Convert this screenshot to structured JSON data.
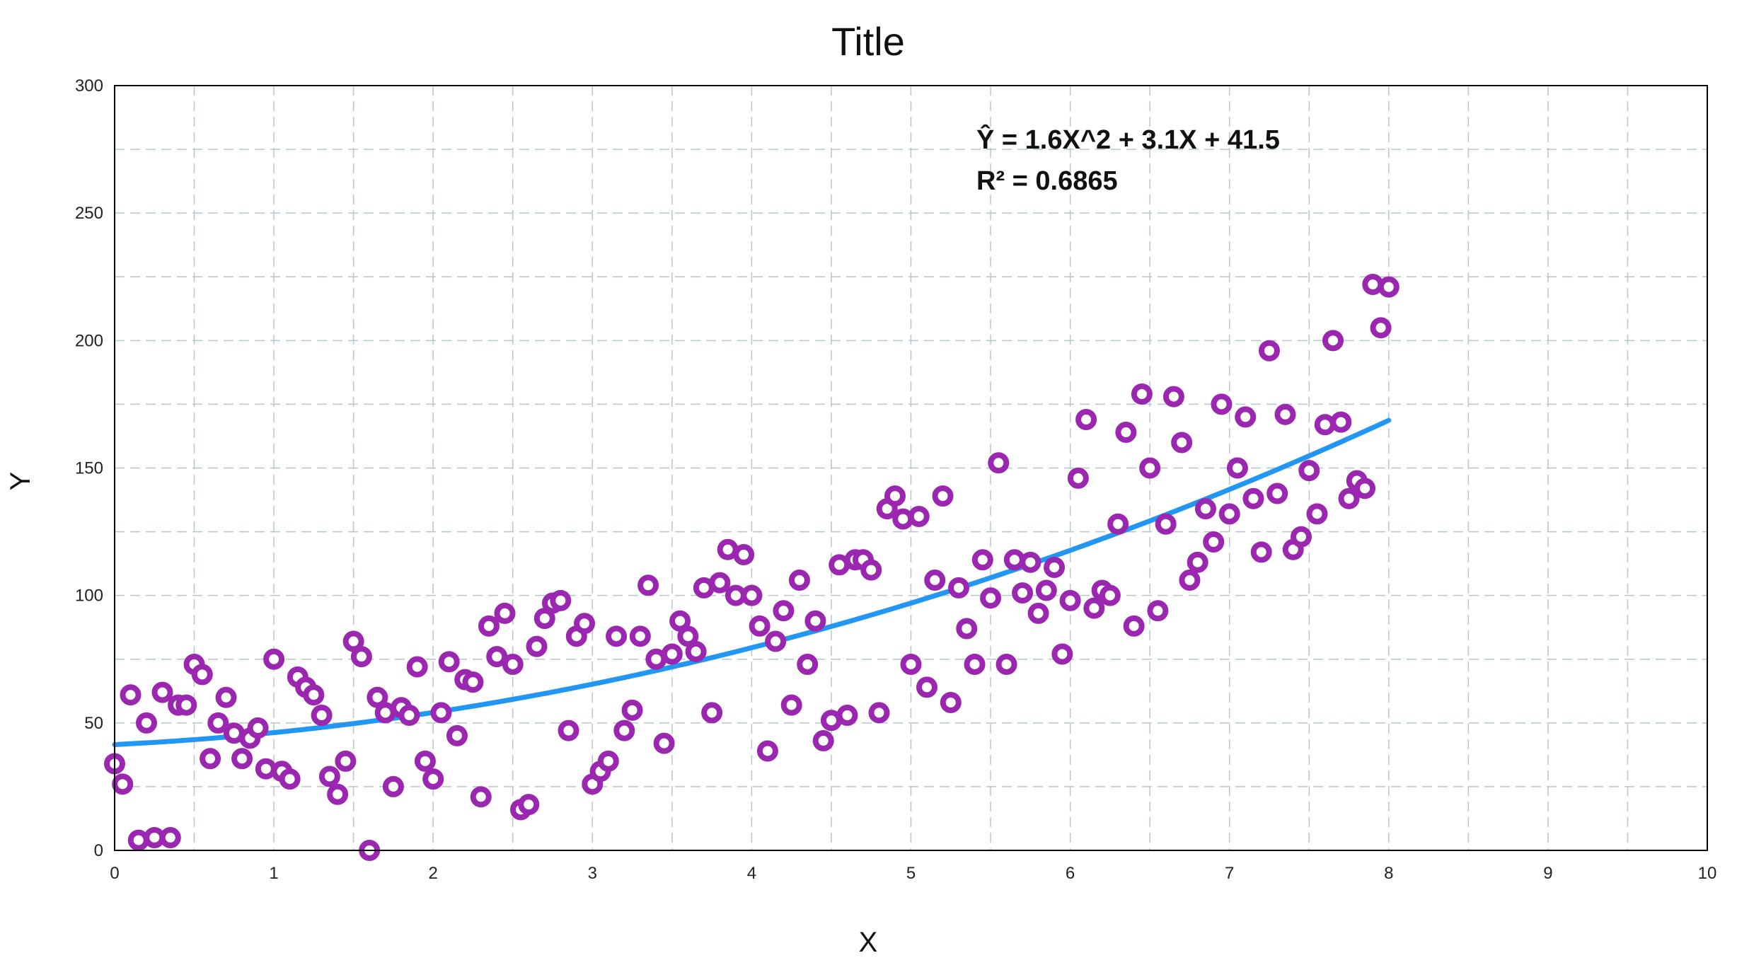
{
  "colors": {
    "points": "#9b27b0",
    "curve": "#2196f3",
    "grid": "#b7c6cc",
    "frame": "#000000"
  },
  "chart_data": {
    "type": "scatter",
    "title": "Title",
    "xlabel": "X",
    "ylabel": "Y",
    "xlim": [
      0,
      10
    ],
    "ylim": [
      0,
      300
    ],
    "xticks": [
      "0",
      "1",
      "2",
      "3",
      "4",
      "5",
      "6",
      "7",
      "8",
      "9",
      "10"
    ],
    "yticks": [
      "0",
      "50",
      "100",
      "150",
      "200",
      "250",
      "300"
    ],
    "grid": true,
    "annotations": [
      "Ŷ = 1.6X^2 + 3.1X + 41.5",
      "R² = 0.6865"
    ],
    "fit": {
      "type": "quadratic",
      "a": 1.6,
      "b": 3.1,
      "c": 41.5,
      "x_range": [
        0,
        8
      ]
    },
    "series": [
      {
        "points": [
          [
            0,
            34
          ],
          [
            0.05,
            26
          ],
          [
            0.1,
            61
          ],
          [
            0.15,
            4
          ],
          [
            0.2,
            50
          ],
          [
            0.25,
            5
          ],
          [
            0.3,
            62
          ],
          [
            0.35,
            5
          ],
          [
            0.4,
            57
          ],
          [
            0.45,
            57
          ],
          [
            0.5,
            73
          ],
          [
            0.55,
            69
          ],
          [
            0.6,
            36
          ],
          [
            0.65,
            50
          ],
          [
            0.7,
            60
          ],
          [
            0.75,
            46
          ],
          [
            0.8,
            36
          ],
          [
            0.85,
            44
          ],
          [
            0.9,
            48
          ],
          [
            0.95,
            32
          ],
          [
            1,
            75
          ],
          [
            1.05,
            31
          ],
          [
            1.1,
            28
          ],
          [
            1.15,
            68
          ],
          [
            1.2,
            64
          ],
          [
            1.25,
            61
          ],
          [
            1.3,
            53
          ],
          [
            1.35,
            29
          ],
          [
            1.4,
            22
          ],
          [
            1.45,
            35
          ],
          [
            1.5,
            82
          ],
          [
            1.55,
            76
          ],
          [
            1.6,
            0
          ],
          [
            1.65,
            60
          ],
          [
            1.7,
            54
          ],
          [
            1.75,
            25
          ],
          [
            1.8,
            56
          ],
          [
            1.85,
            53
          ],
          [
            1.9,
            72
          ],
          [
            1.95,
            35
          ],
          [
            2,
            28
          ],
          [
            2.05,
            54
          ],
          [
            2.1,
            74
          ],
          [
            2.15,
            45
          ],
          [
            2.2,
            67
          ],
          [
            2.25,
            66
          ],
          [
            2.3,
            21
          ],
          [
            2.35,
            88
          ],
          [
            2.4,
            76
          ],
          [
            2.45,
            93
          ],
          [
            2.5,
            73
          ],
          [
            2.55,
            16
          ],
          [
            2.6,
            18
          ],
          [
            2.65,
            80
          ],
          [
            2.7,
            91
          ],
          [
            2.75,
            97
          ],
          [
            2.8,
            98
          ],
          [
            2.85,
            47
          ],
          [
            2.9,
            84
          ],
          [
            2.95,
            89
          ],
          [
            3,
            26
          ],
          [
            3.05,
            31
          ],
          [
            3.1,
            35
          ],
          [
            3.15,
            84
          ],
          [
            3.2,
            47
          ],
          [
            3.25,
            55
          ],
          [
            3.3,
            84
          ],
          [
            3.35,
            104
          ],
          [
            3.4,
            75
          ],
          [
            3.45,
            42
          ],
          [
            3.5,
            77
          ],
          [
            3.55,
            90
          ],
          [
            3.6,
            84
          ],
          [
            3.65,
            78
          ],
          [
            3.7,
            103
          ],
          [
            3.75,
            54
          ],
          [
            3.8,
            105
          ],
          [
            3.85,
            118
          ],
          [
            3.9,
            100
          ],
          [
            3.95,
            116
          ],
          [
            4,
            100
          ],
          [
            4.05,
            88
          ],
          [
            4.1,
            39
          ],
          [
            4.15,
            82
          ],
          [
            4.2,
            94
          ],
          [
            4.25,
            57
          ],
          [
            4.3,
            106
          ],
          [
            4.35,
            73
          ],
          [
            4.4,
            90
          ],
          [
            4.45,
            43
          ],
          [
            4.5,
            51
          ],
          [
            4.55,
            112
          ],
          [
            4.6,
            53
          ],
          [
            4.65,
            114
          ],
          [
            4.7,
            114
          ],
          [
            4.75,
            110
          ],
          [
            4.8,
            54
          ],
          [
            4.85,
            134
          ],
          [
            4.9,
            139
          ],
          [
            4.95,
            130
          ],
          [
            5,
            73
          ],
          [
            5.05,
            131
          ],
          [
            5.1,
            64
          ],
          [
            5.15,
            106
          ],
          [
            5.2,
            139
          ],
          [
            5.25,
            58
          ],
          [
            5.3,
            103
          ],
          [
            5.35,
            87
          ],
          [
            5.4,
            73
          ],
          [
            5.45,
            114
          ],
          [
            5.5,
            99
          ],
          [
            5.55,
            152
          ],
          [
            5.6,
            73
          ],
          [
            5.65,
            114
          ],
          [
            5.7,
            101
          ],
          [
            5.75,
            113
          ],
          [
            5.8,
            93
          ],
          [
            5.85,
            102
          ],
          [
            5.9,
            111
          ],
          [
            5.95,
            77
          ],
          [
            6,
            98
          ],
          [
            6.05,
            146
          ],
          [
            6.1,
            169
          ],
          [
            6.15,
            95
          ],
          [
            6.2,
            102
          ],
          [
            6.25,
            100
          ],
          [
            6.3,
            128
          ],
          [
            6.35,
            164
          ],
          [
            6.4,
            88
          ],
          [
            6.45,
            179
          ],
          [
            6.5,
            150
          ],
          [
            6.55,
            94
          ],
          [
            6.6,
            128
          ],
          [
            6.65,
            178
          ],
          [
            6.7,
            160
          ],
          [
            6.75,
            106
          ],
          [
            6.8,
            113
          ],
          [
            6.85,
            134
          ],
          [
            6.9,
            121
          ],
          [
            6.95,
            175
          ],
          [
            7,
            132
          ],
          [
            7.05,
            150
          ],
          [
            7.1,
            170
          ],
          [
            7.15,
            138
          ],
          [
            7.2,
            117
          ],
          [
            7.25,
            196
          ],
          [
            7.3,
            140
          ],
          [
            7.35,
            171
          ],
          [
            7.4,
            118
          ],
          [
            7.45,
            123
          ],
          [
            7.5,
            149
          ],
          [
            7.55,
            132
          ],
          [
            7.6,
            167
          ],
          [
            7.65,
            200
          ],
          [
            7.7,
            168
          ],
          [
            7.75,
            138
          ],
          [
            7.8,
            145
          ],
          [
            7.85,
            142
          ],
          [
            7.9,
            222
          ],
          [
            7.95,
            205
          ],
          [
            8,
            221
          ]
        ]
      }
    ]
  }
}
